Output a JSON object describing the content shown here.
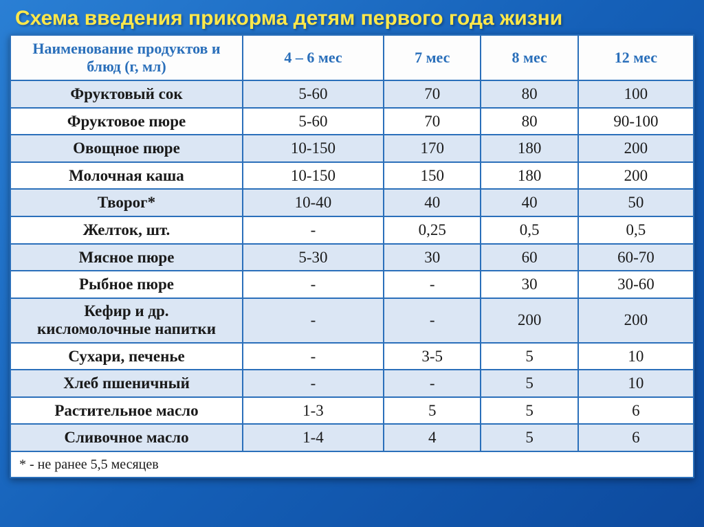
{
  "title": "Схема введения прикорма детям первого года жизни",
  "columns": [
    "Наименование продуктов и блюд (г, мл)",
    "4 – 6 мес",
    "7 мес",
    "8 мес",
    "12 мес"
  ],
  "rows": [
    {
      "name": "Фруктовый сок",
      "v": [
        "5-60",
        "70",
        "80",
        "100"
      ]
    },
    {
      "name": "Фруктовое пюре",
      "v": [
        "5-60",
        "70",
        "80",
        "90-100"
      ]
    },
    {
      "name": "Овощное пюре",
      "v": [
        "10-150",
        "170",
        "180",
        "200"
      ]
    },
    {
      "name": "Молочная каша",
      "v": [
        "10-150",
        "150",
        "180",
        "200"
      ]
    },
    {
      "name": "Творог*",
      "v": [
        "10-40",
        "40",
        "40",
        "50"
      ]
    },
    {
      "name": "Желток, шт.",
      "v": [
        "-",
        "0,25",
        "0,5",
        "0,5"
      ]
    },
    {
      "name": "Мясное пюре",
      "v": [
        "5-30",
        "30",
        "60",
        "60-70"
      ]
    },
    {
      "name": "Рыбное пюре",
      "v": [
        "-",
        "-",
        "30",
        "30-60"
      ]
    },
    {
      "name": "Кефир и др. кисломолочные напитки",
      "v": [
        "-",
        "-",
        "200",
        "200"
      ],
      "twoLine": true
    },
    {
      "name": "Сухари, печенье",
      "v": [
        "-",
        "3-5",
        "5",
        "10"
      ]
    },
    {
      "name": "Хлеб пшеничный",
      "v": [
        "-",
        "-",
        "5",
        "10"
      ]
    },
    {
      "name": "Растительное масло",
      "v": [
        "1-3",
        "5",
        "5",
        "6"
      ]
    },
    {
      "name": "Сливочное масло",
      "v": [
        "1-4",
        "4",
        "5",
        "6"
      ]
    }
  ],
  "footnote": "* - не ранее 5,5 месяцев",
  "colors": {
    "title": "#ffe84a",
    "border": "#2a6fba",
    "header_text": "#2a6fba",
    "stripe_odd": "#dbe6f4",
    "stripe_even": "#ffffff",
    "bg_gradient_from": "#2a7fd4",
    "bg_gradient_to": "#0d4a9e"
  },
  "fonts": {
    "title_family": "Arial",
    "title_size_pt": 23,
    "body_family": "Georgia",
    "cell_size_pt": 17,
    "header_size_pt": 16
  },
  "column_widths_pct": [
    34,
    16.5,
    16.5,
    16.5,
    16.5
  ],
  "layout": {
    "slide_w": 1024,
    "slide_h": 767
  }
}
